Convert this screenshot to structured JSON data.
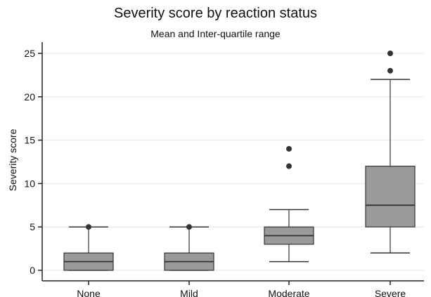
{
  "chart_data": {
    "type": "box",
    "title": "Severity score by reaction status",
    "subtitle": "Mean and Inter-quartile range",
    "xlabel": "",
    "ylabel": "Severity score",
    "ylim": [
      -1,
      26
    ],
    "yticks": [
      0,
      5,
      10,
      15,
      20,
      25
    ],
    "grid": true,
    "categories": [
      "None",
      "Mild",
      "Moderate",
      "Severe"
    ],
    "boxes": [
      {
        "category": "None",
        "whisker_low": 0,
        "q1": 0,
        "median": 1,
        "q3": 2,
        "whisker_high": 5,
        "outliers": [
          5
        ]
      },
      {
        "category": "Mild",
        "whisker_low": 0,
        "q1": 0,
        "median": 1,
        "q3": 2,
        "whisker_high": 5,
        "outliers": [
          5
        ]
      },
      {
        "category": "Moderate",
        "whisker_low": 1,
        "q1": 3,
        "median": 4,
        "q3": 5,
        "whisker_high": 7,
        "outliers": [
          12,
          14
        ]
      },
      {
        "category": "Severe",
        "whisker_low": 2,
        "q1": 5,
        "median": 7.5,
        "q3": 12,
        "whisker_high": 22,
        "outliers": [
          23,
          25
        ]
      }
    ],
    "colors": {
      "box_fill": "#9a9a9a",
      "box_stroke": "#333333",
      "outlier": "#333333",
      "grid": "#e6e6e6"
    }
  }
}
